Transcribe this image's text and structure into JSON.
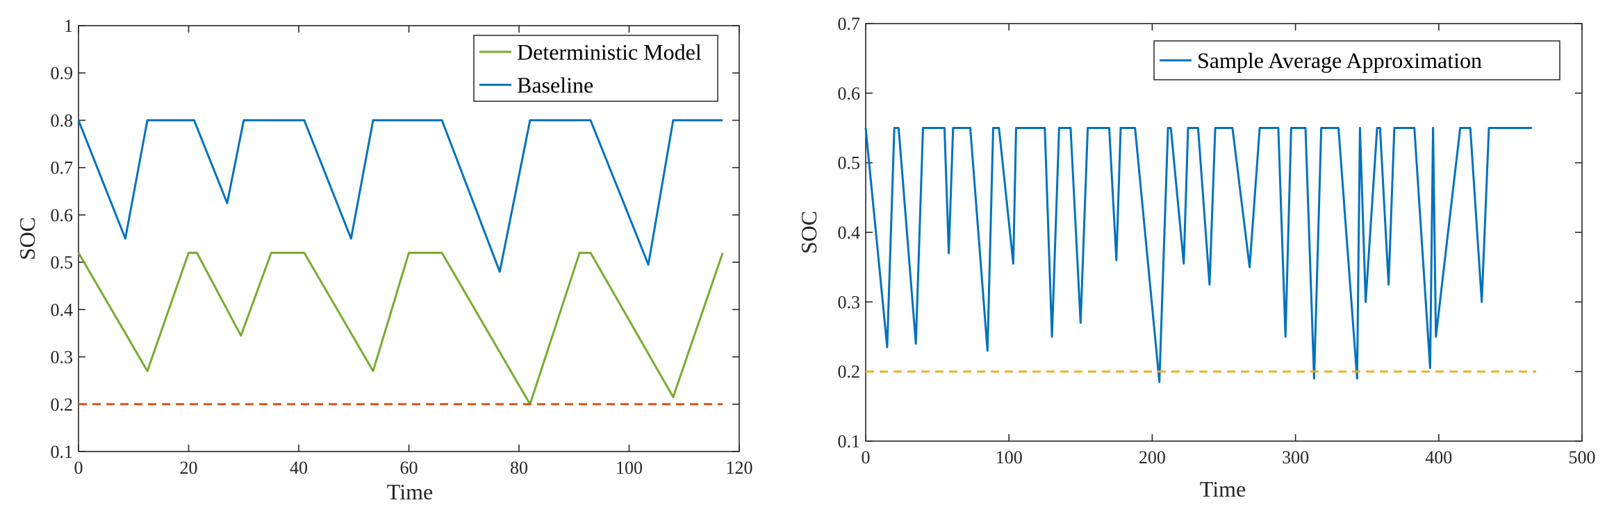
{
  "chart_data": [
    {
      "type": "line",
      "title": "",
      "xlabel": "Time",
      "ylabel": "SOC",
      "xlim": [
        0,
        120
      ],
      "ylim": [
        0.1,
        1.0
      ],
      "xticks": [
        0,
        20,
        40,
        60,
        80,
        100,
        120
      ],
      "xtick_labels": [
        "0",
        "20",
        "40",
        "60",
        "80",
        "100",
        "120"
      ],
      "yticks": [
        0.1,
        0.2,
        0.3,
        0.4,
        0.5,
        0.6,
        0.7,
        0.8,
        0.9,
        1.0
      ],
      "ytick_labels": [
        "0.1",
        "0.2",
        "0.3",
        "0.4",
        "0.5",
        "0.6",
        "0.7",
        "0.8",
        "0.9",
        "1"
      ],
      "grid": false,
      "legend": "top-right",
      "series": [
        {
          "name": "Deterministic Model",
          "color": "#77AC30",
          "in_legend": true,
          "x": [
            0,
            12.5,
            20,
            21.5,
            29.5,
            35,
            41,
            53.5,
            60,
            66,
            82,
            91,
            93,
            108,
            117
          ],
          "y": [
            0.52,
            0.27,
            0.52,
            0.52,
            0.345,
            0.52,
            0.52,
            0.27,
            0.52,
            0.52,
            0.2,
            0.52,
            0.52,
            0.215,
            0.52
          ]
        },
        {
          "name": "Baseline",
          "color": "#0072BD",
          "in_legend": true,
          "x": [
            0,
            8.5,
            12.5,
            21,
            27,
            30,
            41,
            49.5,
            53.5,
            66,
            76.5,
            82,
            93,
            103.5,
            108,
            117
          ],
          "y": [
            0.8,
            0.55,
            0.8,
            0.8,
            0.625,
            0.8,
            0.8,
            0.55,
            0.8,
            0.8,
            0.48,
            0.8,
            0.8,
            0.495,
            0.8,
            0.8
          ]
        },
        {
          "name": "Lower bound",
          "color": "#D95319",
          "dashed": true,
          "in_legend": false,
          "x": [
            0,
            117
          ],
          "y": [
            0.2,
            0.2
          ]
        }
      ]
    },
    {
      "type": "line",
      "title": "",
      "xlabel": "Time",
      "ylabel": "SOC",
      "xlim": [
        0,
        500
      ],
      "ylim": [
        0.1,
        0.7
      ],
      "xticks": [
        0,
        100,
        200,
        300,
        400,
        500
      ],
      "xtick_labels": [
        "0",
        "100",
        "200",
        "300",
        "400",
        "500"
      ],
      "yticks": [
        0.1,
        0.2,
        0.3,
        0.4,
        0.5,
        0.6,
        0.7
      ],
      "ytick_labels": [
        "0.1",
        "0.2",
        "0.3",
        "0.4",
        "0.5",
        "0.6",
        "0.7"
      ],
      "grid": false,
      "legend": "top-right",
      "series": [
        {
          "name": "Sample Average Approximation",
          "color": "#0072BD",
          "in_legend": true,
          "x": [
            0,
            15,
            20,
            23,
            35,
            40,
            42,
            48,
            50,
            55,
            58,
            61,
            63,
            73,
            85,
            89,
            93,
            103,
            105,
            108,
            115,
            125,
            130,
            135,
            138,
            143,
            150,
            155,
            160,
            163,
            170,
            175,
            178,
            180,
            182,
            188,
            205,
            211,
            213,
            222,
            225,
            232,
            240,
            244,
            248,
            255,
            256,
            268,
            275,
            280,
            282,
            288,
            293,
            297,
            300,
            307,
            313,
            318,
            330,
            343,
            345,
            349,
            357,
            359,
            365,
            369,
            372,
            377,
            380,
            383,
            394,
            396,
            398,
            415,
            422,
            430,
            435,
            438,
            447,
            452,
            457,
            460,
            465
          ],
          "y": [
            0.55,
            0.235,
            0.55,
            0.55,
            0.24,
            0.55,
            0.55,
            0.55,
            0.55,
            0.55,
            0.37,
            0.55,
            0.55,
            0.55,
            0.23,
            0.55,
            0.55,
            0.355,
            0.55,
            0.55,
            0.55,
            0.55,
            0.25,
            0.55,
            0.55,
            0.55,
            0.27,
            0.55,
            0.55,
            0.55,
            0.55,
            0.36,
            0.55,
            0.55,
            0.55,
            0.55,
            0.185,
            0.55,
            0.55,
            0.355,
            0.55,
            0.55,
            0.325,
            0.55,
            0.55,
            0.55,
            0.55,
            0.35,
            0.55,
            0.55,
            0.55,
            0.55,
            0.25,
            0.55,
            0.55,
            0.55,
            0.19,
            0.55,
            0.55,
            0.19,
            0.55,
            0.3,
            0.55,
            0.55,
            0.325,
            0.55,
            0.55,
            0.55,
            0.55,
            0.55,
            0.205,
            0.55,
            0.25,
            0.55,
            0.55,
            0.3,
            0.55,
            0.55,
            0.55,
            0.55,
            0.55,
            0.55,
            0.55
          ]
        },
        {
          "name": "Lower bound",
          "color": "#EDB120",
          "dashed": true,
          "in_legend": false,
          "x": [
            0,
            468
          ],
          "y": [
            0.2,
            0.2
          ]
        }
      ]
    }
  ]
}
